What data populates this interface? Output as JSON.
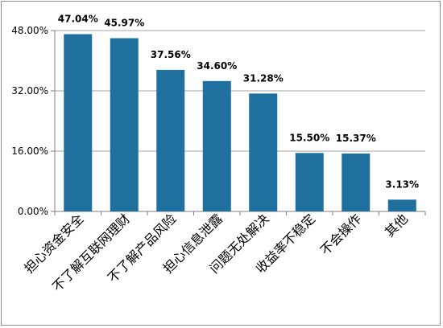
{
  "chart_data": {
    "type": "bar",
    "categories": [
      "担心资金安全",
      "不了解互联网理财",
      "不了解产品风险",
      "担心信息泄露",
      "问题无处解决",
      "收益率不稳定",
      "不会操作",
      "其他"
    ],
    "values": [
      47.04,
      45.97,
      37.56,
      34.6,
      31.28,
      15.5,
      15.37,
      3.13
    ],
    "value_labels": [
      "47.04%",
      "45.97%",
      "37.56%",
      "34.60%",
      "31.28%",
      "15.50%",
      "15.37%",
      "3.13%"
    ],
    "y_ticks": [
      0,
      16,
      32,
      48
    ],
    "y_tick_labels": [
      "0.00%",
      "16.00%",
      "32.00%",
      "48.00%"
    ],
    "ylim": [
      0,
      48
    ],
    "grid": true,
    "bar_color": "#1f6f9f",
    "grid_color": "#a6a6a6",
    "axis_color": "#7f7f7f"
  }
}
